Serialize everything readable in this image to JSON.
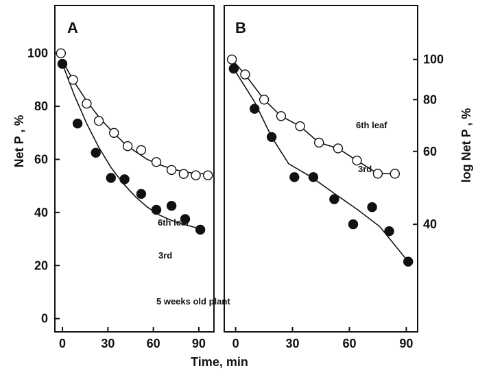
{
  "chart_data": [
    {
      "type": "scatter",
      "panel_label": "A",
      "xlabel": "",
      "ylabel": "Net P , %",
      "xlim": [
        -5,
        100
      ],
      "ylim": [
        -5,
        118
      ],
      "x_ticks": [
        0,
        30,
        60,
        90
      ],
      "x_tick_labels": [
        "0",
        "30",
        "60",
        "90"
      ],
      "y_ticks": [
        0,
        20,
        40,
        60,
        80,
        100
      ],
      "y_tick_labels": [
        "0",
        "20",
        "40",
        "60",
        "80",
        "100"
      ],
      "annotation": "5 weeks old plant",
      "series": [
        {
          "name": "6th leaf",
          "marker": "open-circle",
          "x": [
            -1,
            7,
            16,
            24,
            34,
            43,
            52,
            62,
            72,
            80,
            88,
            96
          ],
          "y": [
            100,
            90,
            81,
            74.5,
            70,
            65,
            63.5,
            59,
            56,
            54.5,
            54,
            54
          ],
          "fit_x": [
            0,
            8,
            16,
            24,
            32,
            40,
            48,
            56,
            64,
            72,
            80,
            88,
            96
          ],
          "fit_y": [
            97,
            89,
            82,
            76,
            71,
            66.5,
            63,
            60,
            58,
            56.5,
            55.3,
            54.7,
            54.5
          ]
        },
        {
          "name": "3rd",
          "marker": "filled-circle",
          "x": [
            0,
            10,
            22,
            32,
            41,
            52,
            62,
            72,
            81,
            91
          ],
          "y": [
            96,
            73.5,
            62.5,
            53,
            52.5,
            47,
            41,
            42.5,
            37.5,
            33.5
          ],
          "fit_x": [
            0,
            8,
            16,
            24,
            32,
            40,
            48,
            56,
            64,
            72,
            80,
            88,
            92
          ],
          "fit_y": [
            96,
            84,
            73.5,
            64.5,
            57,
            51,
            46,
            42,
            39,
            37,
            35.5,
            34.3,
            33.8
          ]
        }
      ]
    },
    {
      "type": "scatter",
      "panel_label": "B",
      "xlabel": "Time, min",
      "ylabel": "log Net P , %",
      "y_scale": "log",
      "xlim": [
        -6,
        96
      ],
      "ylim": [
        22,
        135
      ],
      "x_ticks": [
        0,
        30,
        60,
        90
      ],
      "x_tick_labels": [
        "0",
        "30",
        "60",
        "90"
      ],
      "y_ticks": [
        40,
        60,
        80,
        100
      ],
      "y_tick_labels": [
        "40",
        "60",
        "80",
        "100"
      ],
      "series": [
        {
          "name": "6th leaf",
          "marker": "open-circle",
          "x": [
            -2,
            5,
            15,
            24,
            34,
            44,
            54,
            64,
            75,
            84
          ],
          "y": [
            100,
            92,
            80,
            73,
            69,
            63,
            61,
            57,
            53,
            53
          ],
          "fit_x": [
            -2,
            5,
            15,
            24,
            34,
            44,
            54,
            64,
            75,
            84
          ],
          "fit_y": [
            100,
            92,
            80,
            73,
            69,
            63,
            61,
            57,
            53,
            53
          ]
        },
        {
          "name": "3rd",
          "marker": "filled-circle",
          "x": [
            -1,
            10,
            19,
            31,
            41,
            52,
            62,
            72,
            81,
            91
          ],
          "y": [
            95,
            76,
            65,
            52,
            52,
            46,
            40,
            44,
            38.5,
            32.5
          ],
          "fit_x": [
            -1,
            10,
            19,
            28,
            40,
            52,
            64,
            76,
            91
          ],
          "fit_y": [
            95,
            79,
            65,
            56,
            52,
            47.5,
            43.5,
            39.5,
            32.5
          ]
        }
      ]
    }
  ]
}
